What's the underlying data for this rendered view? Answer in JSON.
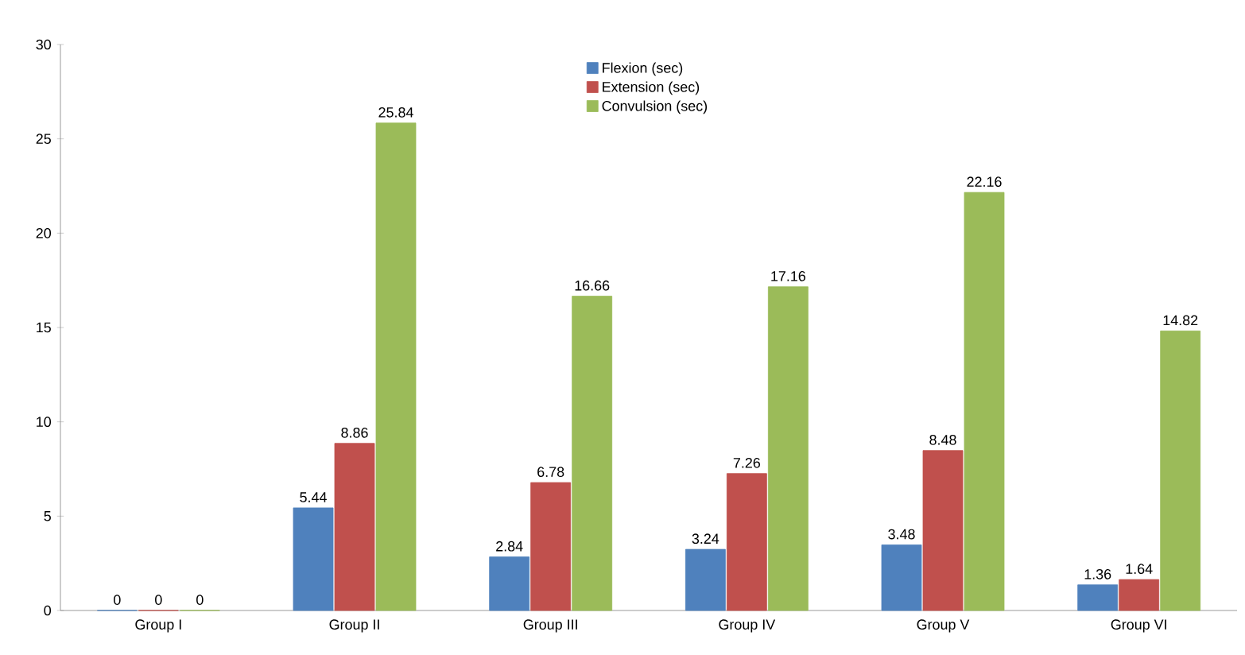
{
  "chart_data": {
    "type": "bar",
    "categories": [
      "Group I",
      "Group II",
      "Group III",
      "Group IV",
      "Group V",
      "Group VI"
    ],
    "series": [
      {
        "name": "Flexion (sec)",
        "color": "#4f81bd",
        "values": [
          0,
          5.44,
          2.84,
          3.24,
          3.48,
          1.36
        ]
      },
      {
        "name": "Extension (sec)",
        "color": "#c0504d",
        "values": [
          0,
          8.86,
          6.78,
          7.26,
          8.48,
          1.64
        ]
      },
      {
        "name": "Convulsion (sec)",
        "color": "#9bbb59",
        "values": [
          0,
          25.84,
          16.66,
          17.16,
          22.16,
          14.82
        ]
      }
    ],
    "ylim": [
      0,
      30
    ],
    "yticks": [
      0,
      5,
      10,
      15,
      20,
      25,
      30
    ],
    "data_labels": true,
    "grid": false,
    "legend": "top"
  }
}
